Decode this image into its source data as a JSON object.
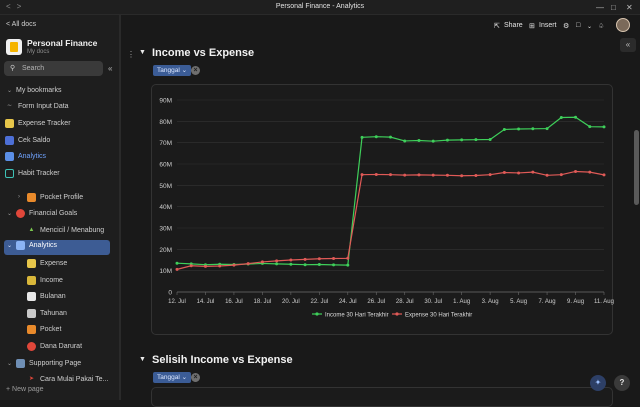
{
  "window": {
    "title": "Personal Finance - Analytics",
    "nav_back": "<",
    "nav_forward": ">",
    "minimize": "—",
    "maximize": "□",
    "close": "✕"
  },
  "sidebar": {
    "all_docs": "< All docs",
    "workspace_name": "Personal Finance",
    "workspace_sub": "My docs",
    "search_placeholder": "Search",
    "items": [
      {
        "label": "My bookmarks"
      },
      {
        "label": "Form Input Data"
      },
      {
        "label": "Expense Tracker"
      },
      {
        "label": "Cek Saldo"
      },
      {
        "label": "Analytics"
      },
      {
        "label": "Habit Tracker"
      },
      {
        "label": "Pocket Profile"
      },
      {
        "label": "Financial Goals"
      },
      {
        "label": "Mencicil / Menabung"
      },
      {
        "label": "Analytics"
      },
      {
        "label": "Expense"
      },
      {
        "label": "Income"
      },
      {
        "label": "Bulanan"
      },
      {
        "label": "Tahunan"
      },
      {
        "label": "Pocket"
      },
      {
        "label": "Dana Darurat"
      },
      {
        "label": "Supporting Page"
      },
      {
        "label": "Cara Mulai Pakai Te..."
      }
    ],
    "new_page": "+ New page"
  },
  "topbar": {
    "share": "Share",
    "insert": "Insert"
  },
  "sections": [
    {
      "title": "Income vs Expense",
      "filter": "Tanggal"
    },
    {
      "title": "Selisih Income vs Expense",
      "filter": "Tanggal"
    }
  ],
  "chart_data": {
    "type": "line",
    "x": [
      "12. Jul",
      "13. Jul",
      "14. Jul",
      "15. Jul",
      "16. Jul",
      "17. Jul",
      "18. Jul",
      "19. Jul",
      "20. Jul",
      "21. Jul",
      "22. Jul",
      "23. Jul",
      "24. Jul",
      "25. Jul",
      "26. Jul",
      "27. Jul",
      "28. Jul",
      "29. Jul",
      "30. Jul",
      "31. Jul",
      "1. Aug",
      "2. Aug",
      "3. Aug",
      "4. Aug",
      "5. Aug",
      "6. Aug",
      "7. Aug",
      "8. Aug",
      "9. Aug",
      "10. Aug",
      "11. Aug"
    ],
    "xticks": [
      "12. Jul",
      "14. Jul",
      "16. Jul",
      "18. Jul",
      "20. Jul",
      "22. Jul",
      "24. Jul",
      "26. Jul",
      "28. Jul",
      "30. Jul",
      "1. Aug",
      "3. Aug",
      "5. Aug",
      "7. Aug",
      "9. Aug",
      "11. Aug"
    ],
    "yticks": [
      "0",
      "10M",
      "20M",
      "30M",
      "40M",
      "50M",
      "60M",
      "70M",
      "80M",
      "90M"
    ],
    "ylim": [
      0,
      90
    ],
    "series": [
      {
        "name": "Income 30 Hari Terakhir",
        "color": "#3ecf5a",
        "values": [
          13.5,
          13.2,
          12.8,
          13.0,
          12.9,
          13.1,
          13.4,
          13.2,
          13.0,
          12.8,
          12.9,
          12.7,
          12.6,
          72.5,
          72.8,
          72.6,
          70.8,
          71.0,
          70.7,
          71.2,
          71.3,
          71.4,
          71.5,
          76.2,
          76.4,
          76.5,
          76.6,
          81.8,
          81.9,
          77.5,
          77.4
        ]
      },
      {
        "name": "Expense 30 Hari Terakhir",
        "color": "#e05a57",
        "values": [
          10.6,
          12.3,
          12.0,
          12.2,
          12.6,
          13.3,
          14.1,
          14.6,
          15.0,
          15.3,
          15.6,
          15.7,
          15.8,
          55.0,
          55.1,
          55.0,
          54.8,
          54.9,
          54.8,
          54.7,
          54.5,
          54.6,
          55.0,
          56.0,
          55.8,
          56.2,
          54.7,
          55.0,
          56.5,
          56.2,
          54.9
        ]
      }
    ],
    "grid": true,
    "legend": "bottom-center"
  }
}
